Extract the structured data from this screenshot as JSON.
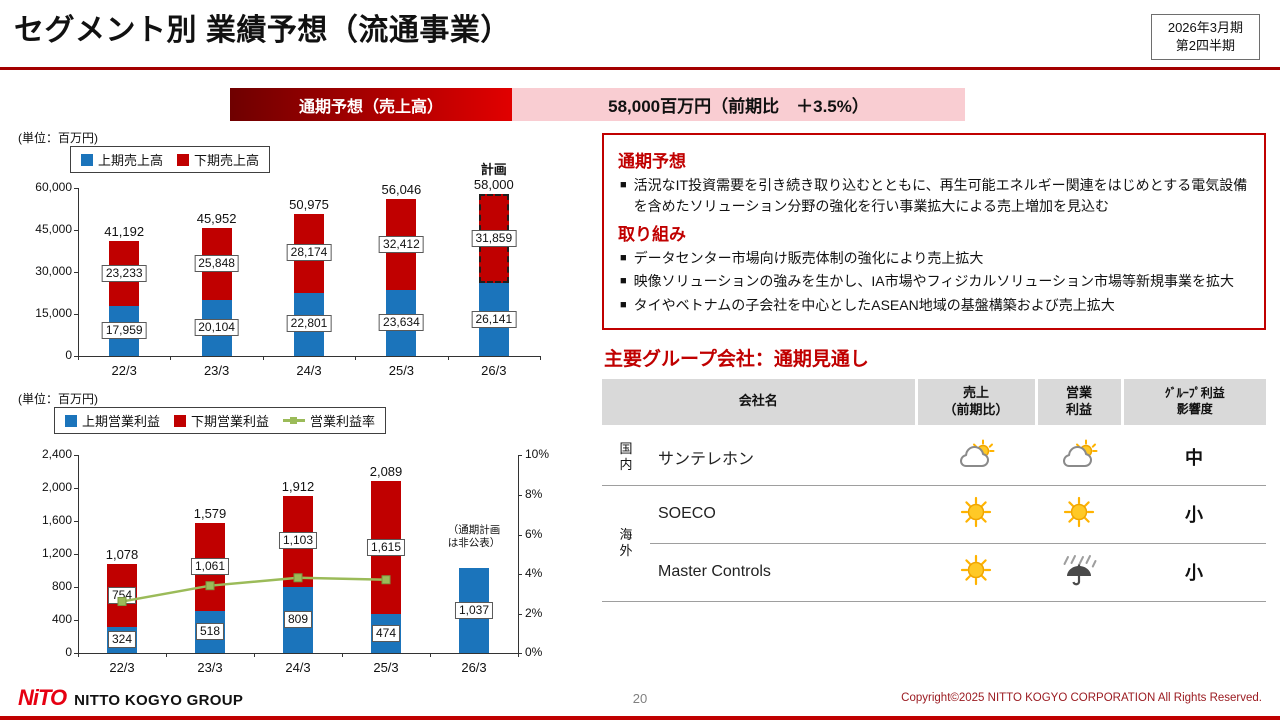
{
  "meta": {
    "title": "セグメント別 業績予想（流通事業）",
    "period_line1": "2026年3月期",
    "period_line2": "第2四半期",
    "page_number": "20",
    "copyright": "Copyright©2025 NITTO KOGYO CORPORATION All Rights Reserved.",
    "logo_mark": "NiTO",
    "logo_text": "NITTO KOGYO GROUP"
  },
  "band": {
    "label": "通期予想（売上高）",
    "value": "58,000百万円（前期比　＋3.5%）"
  },
  "chart_data": [
    {
      "id": "sales",
      "type": "bar",
      "unit_label": "(単位：百万円)",
      "categories": [
        "22/3",
        "23/3",
        "24/3",
        "25/3",
        "26/3"
      ],
      "series": [
        {
          "name": "上期売上高",
          "color": "#1b74bb",
          "values": [
            17959,
            20104,
            22801,
            23634,
            26141
          ]
        },
        {
          "name": "下期売上高",
          "color": "#c00000",
          "values": [
            23233,
            25848,
            28174,
            32412,
            31859
          ]
        }
      ],
      "totals": [
        41192,
        45952,
        50975,
        56046,
        58000
      ],
      "plan_index": 4,
      "plan_label": "計画",
      "ymax": 60000,
      "yticks": [
        0,
        15000,
        30000,
        45000,
        60000
      ],
      "legend_position": "top-left"
    },
    {
      "id": "profit",
      "type": "bar+line",
      "unit_label": "(単位：百万円)",
      "categories": [
        "22/3",
        "23/3",
        "24/3",
        "25/3",
        "26/3"
      ],
      "series": [
        {
          "name": "上期営業利益",
          "color": "#1b74bb",
          "values": [
            324,
            518,
            809,
            474,
            1037
          ]
        },
        {
          "name": "下期営業利益",
          "color": "#c00000",
          "values": [
            754,
            1061,
            1103,
            1615,
            null
          ]
        }
      ],
      "line_series": {
        "name": "営業利益率",
        "color": "#9bbb59",
        "axis": "right",
        "values": [
          2.6,
          3.4,
          3.8,
          3.7,
          null
        ]
      },
      "totals": [
        1078,
        1579,
        1912,
        2089,
        null
      ],
      "note_index": 4,
      "note": "（通期計画\nは非公表）",
      "ymax": 2400,
      "yticks": [
        0,
        400,
        800,
        1200,
        1600,
        2000,
        2400
      ],
      "y2max": 10,
      "y2ticks": [
        0,
        2,
        4,
        6,
        8,
        10
      ],
      "legend_position": "top-left"
    }
  ],
  "right": {
    "forecast_heading": "通期予想",
    "forecast_bullets": [
      "活況なIT投資需要を引き続き取り込むとともに、再生可能エネルギー関連をはじめとする電気設備を含めたソリューション分野の強化を行い事業拡大による売上増加を見込む"
    ],
    "initiatives_heading": "取り組み",
    "initiative_bullets": [
      "データセンター市場向け販売体制の強化により売上拡大",
      "映像ソリューションの強みを生かし、IA市場やフィジカルソリューション市場等新規事業を拡大",
      "タイやベトナムの子会社を中心としたASEAN地域の基盤構築および売上拡大"
    ],
    "group_heading": "主要グループ会社：通期見通し",
    "table": {
      "headers": [
        "会社名",
        "売上\n（前期比）",
        "営業\n利益",
        "ｸﾞﾙｰﾌﾟ利益\n影響度"
      ],
      "rows": [
        {
          "region": "国内",
          "region_span": 1,
          "company": "サンテレホン",
          "sales_icon": "cloud-sun-icon",
          "profit_icon": "cloud-sun-icon",
          "impact": "中"
        },
        {
          "region": "海外",
          "region_span": 2,
          "company": "SOECO",
          "sales_icon": "sun-icon",
          "profit_icon": "sun-icon",
          "impact": "小"
        },
        {
          "company": "Master Controls",
          "sales_icon": "sun-icon",
          "profit_icon": "rain-icon",
          "impact": "小"
        }
      ]
    }
  }
}
